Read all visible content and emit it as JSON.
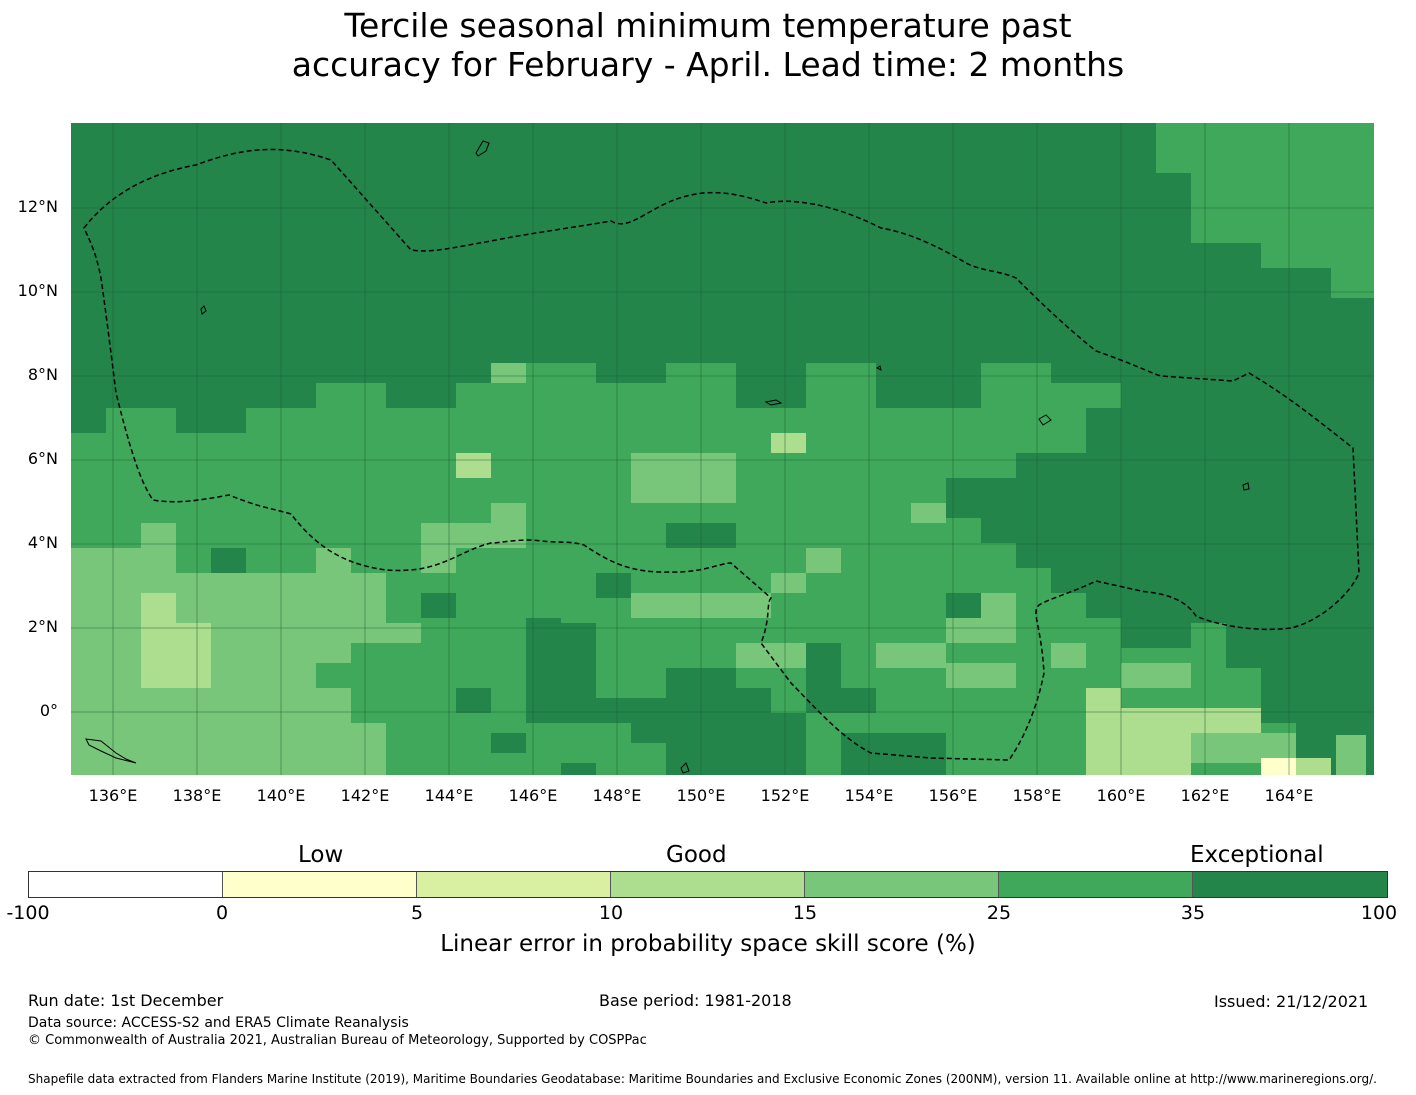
{
  "title": {
    "line1": "Tercile seasonal minimum temperature past",
    "line2": "accuracy for February - April. Lead time: 2 months"
  },
  "map": {
    "lat_labels": [
      "12°N",
      "10°N",
      "8°N",
      "6°N",
      "4°N",
      "2°N",
      "0°"
    ],
    "lon_labels": [
      "136°E",
      "138°E",
      "140°E",
      "142°E",
      "144°E",
      "146°E",
      "148°E",
      "150°E",
      "152°E",
      "154°E",
      "156°E",
      "158°E",
      "160°E",
      "162°E",
      "164°E"
    ],
    "colors": {
      "exceptional": "#23854a",
      "high": "#3fa85a",
      "mid": "#78c679",
      "good": "#addd8e",
      "low_good": "#d9f0a3",
      "low": "#ffffcc"
    }
  },
  "legend": {
    "category_labels": [
      "Low",
      "Good",
      "Exceptional"
    ],
    "ticks": [
      "-100",
      "0",
      "5",
      "10",
      "15",
      "25",
      "35",
      "100"
    ],
    "colors": [
      "#ffffff",
      "#ffffcc",
      "#d9f0a3",
      "#addd8e",
      "#78c679",
      "#3fa85a",
      "#23854a"
    ],
    "title": "Linear error in probability space skill score (%)"
  },
  "footer": {
    "run_date": "Run date: 1st December",
    "base_period": "Base period: 1981-2018",
    "issued": "Issued: 21/12/2021",
    "data_source": "Data source: ACCESS-S2 and ERA5 Climate Reanalysis",
    "copyright": "© Commonwealth of Australia 2021, Australian Bureau of Meteorology, Supported by COSPPac",
    "shapefile": "Shapefile data extracted from Flanders Marine Institute (2019), Maritime Boundaries Geodatabase: Maritime Boundaries and Exclusive Economic Zones (200NM), version 11. Available online at http://www.marineregions.org/."
  }
}
